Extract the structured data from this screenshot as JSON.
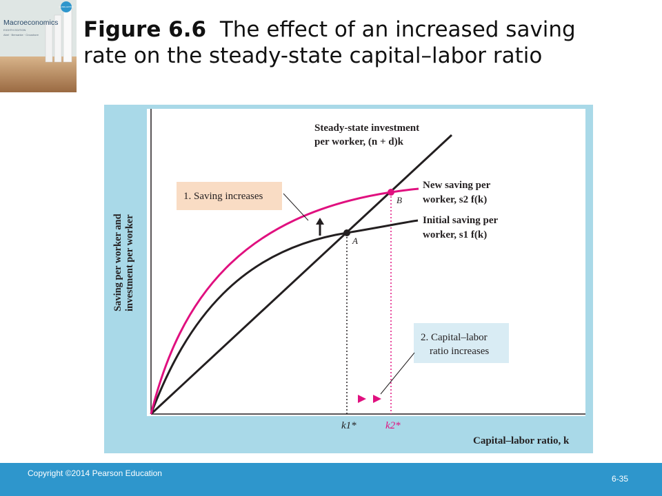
{
  "cover": {
    "title": "Macroeconomics",
    "edition": "GLOBAL EDITION",
    "subtitle": "EIGHTH EDITION",
    "authors": "Abel · Bernanke · Croushore"
  },
  "title": {
    "figure_label": "Figure 6.6",
    "line1": "The effect of an increased saving",
    "line2": "rate on the steady-state capital–labor ratio"
  },
  "figure": {
    "y_axis_line1": "Saving per worker and",
    "y_axis_line2": "investment per worker",
    "x_axis_label": "Capital–labor ratio, k",
    "steady_line1": "Steady-state investment",
    "steady_line2": "per worker, (n + d)k",
    "new_saving_line1": "New saving per",
    "new_saving_line2": "worker, s2 f(k)",
    "initial_saving_line1": "Initial saving per",
    "initial_saving_line2": "worker, s1 f(k)",
    "callout1": "1. Saving increases",
    "callout2_line1": "2. Capital–labor",
    "callout2_line2": "ratio increases",
    "point_a": "A",
    "point_b": "B",
    "k1_label": "k1*",
    "k2_label": "k2*",
    "colors": {
      "saving": "#e0107f",
      "black": "#231f20",
      "callout1_bg": "#f9dcc4",
      "callout2_bg": "#d9ecf4",
      "panel_bg": "#a9d9e8"
    }
  },
  "footer": {
    "copyright": "Copyright ©2014 Pearson Education",
    "slide_number": "6-35"
  }
}
